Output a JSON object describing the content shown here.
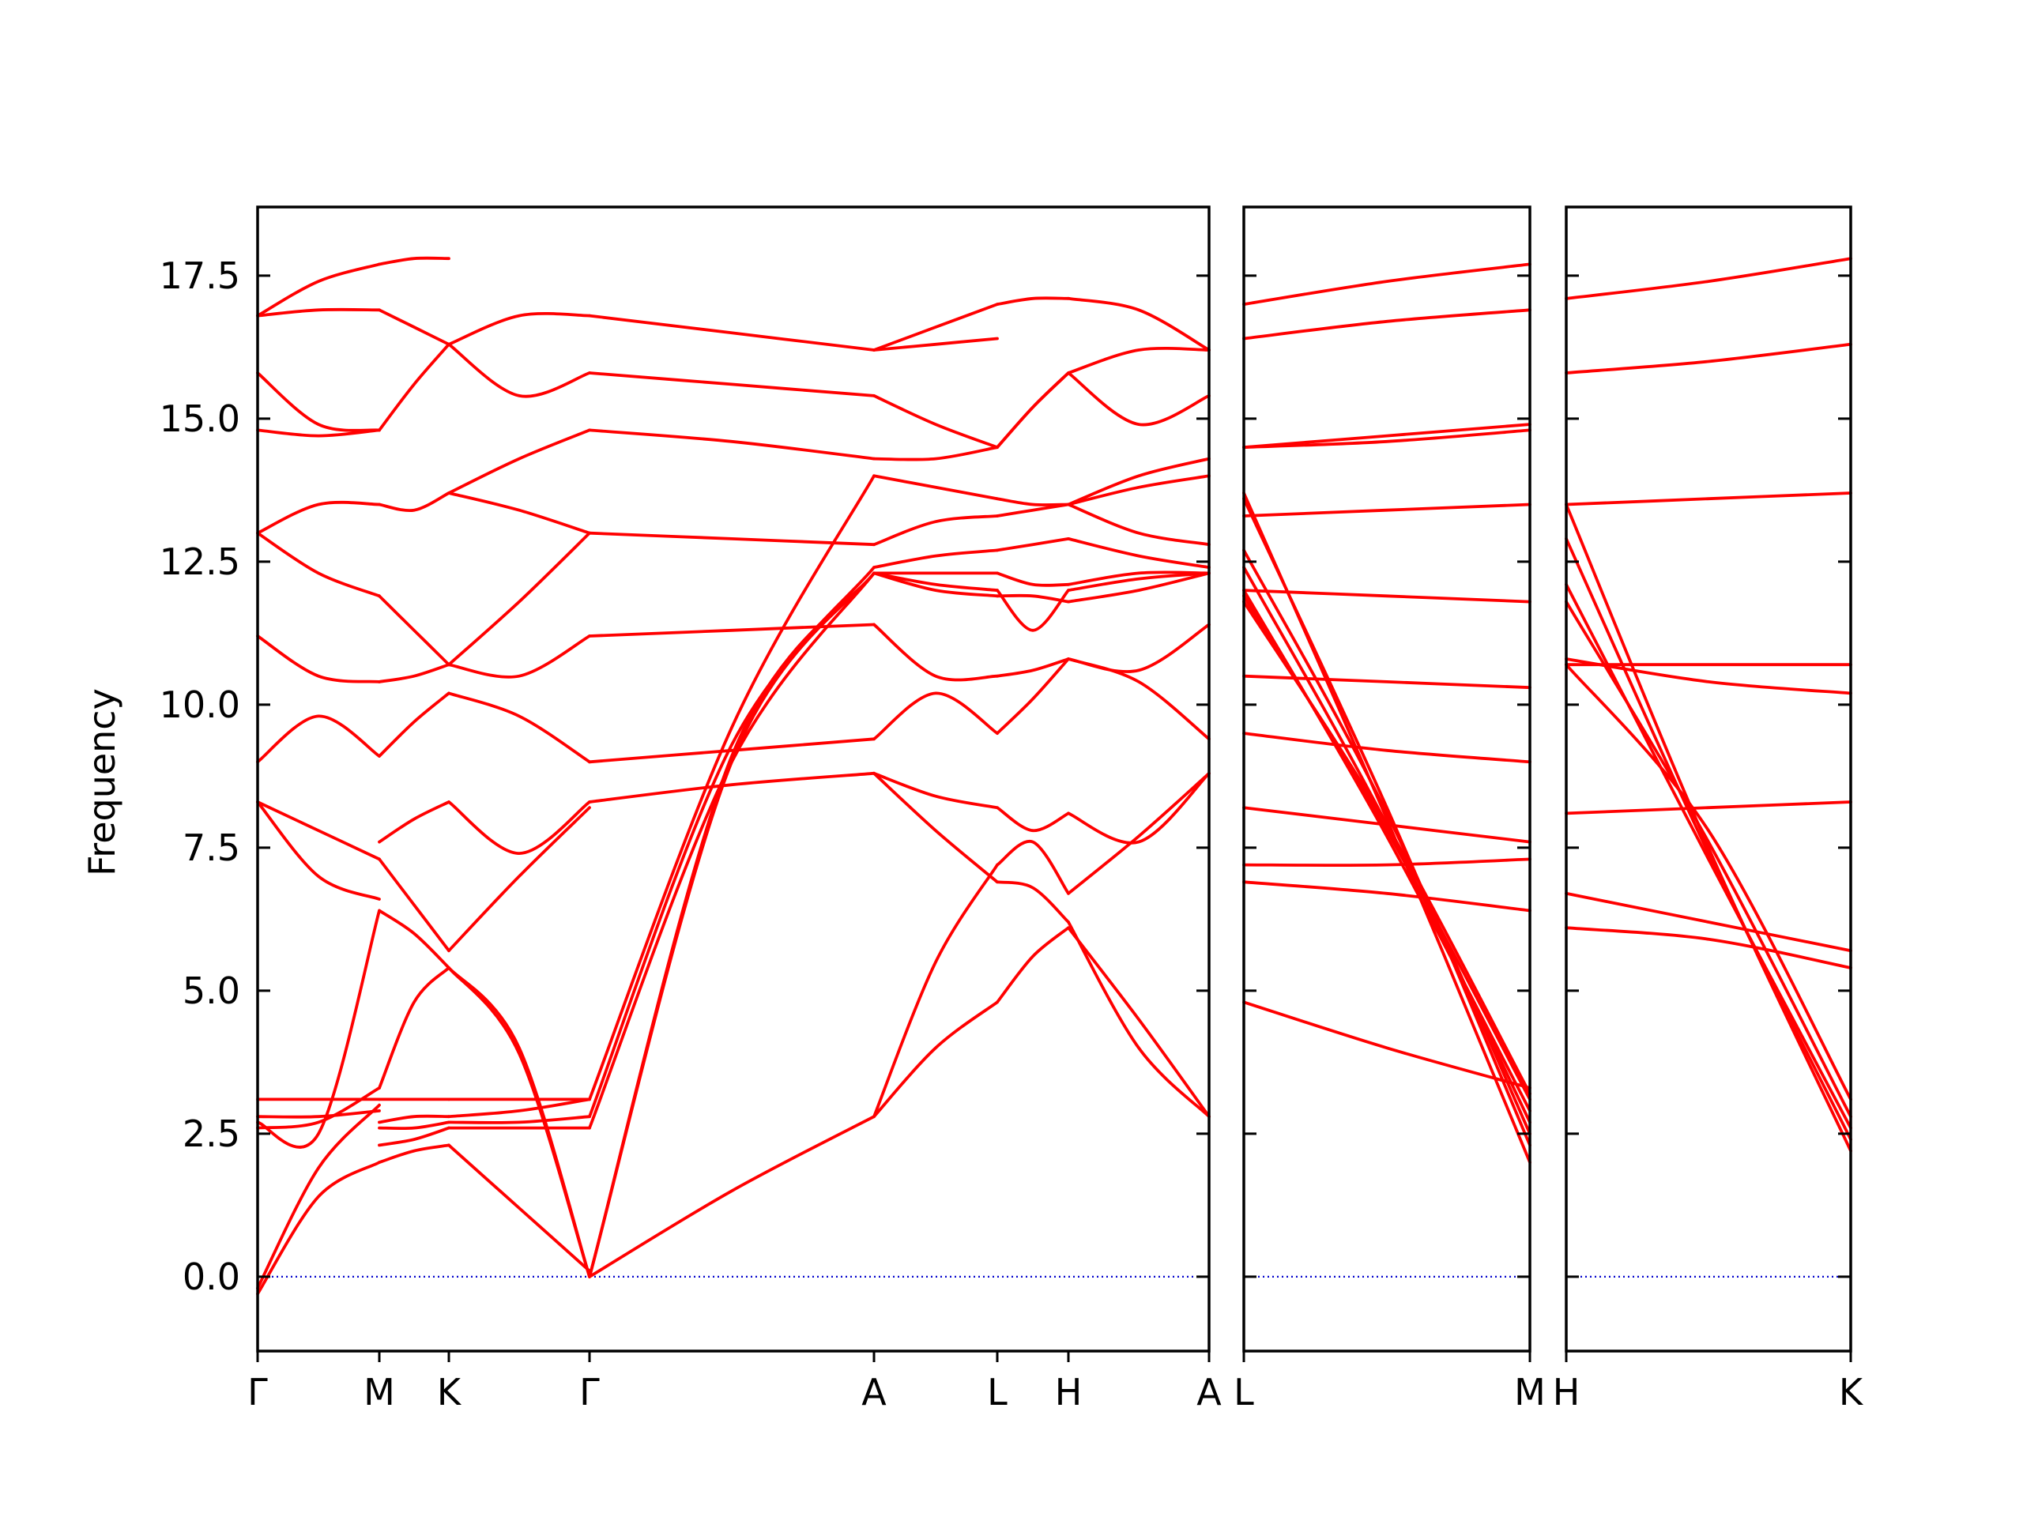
{
  "chart_data": {
    "type": "line",
    "title": "",
    "ylabel": "Frequency",
    "ylim": [
      -1.3,
      18.7
    ],
    "yticks": [
      "0.0",
      "2.5",
      "5.0",
      "7.5",
      "10.0",
      "12.5",
      "15.0",
      "17.5"
    ],
    "ytick_values": [
      0,
      2.5,
      5,
      7.5,
      10,
      12.5,
      15,
      17.5
    ],
    "colors": {
      "bands": "#ff0000",
      "zero_line": "#0000cc",
      "axes": "#000000"
    },
    "zero_line": {
      "y": 0,
      "style": "dotted"
    },
    "panels": [
      {
        "xticks": [
          "Γ",
          "M",
          "K",
          "Γ",
          "A",
          "L",
          "H",
          "A"
        ],
        "segments": [
          {
            "from": "Γ",
            "to": "M",
            "bands": [
              [
                -0.3,
                1.4,
                2.0
              ],
              [
                -0.2,
                1.9,
                3.0
              ],
              [
                2.6,
                2.7,
                3.3
              ],
              [
                2.7,
                2.5,
                6.4
              ],
              [
                2.8,
                2.8,
                2.9
              ],
              [
                3.1,
                3.1,
                3.1
              ],
              [
                8.3,
                7.0,
                6.6
              ],
              [
                8.3,
                7.8,
                7.3
              ],
              [
                9.0,
                9.8,
                9.1
              ],
              [
                11.2,
                10.5,
                10.4
              ],
              [
                13.0,
                12.3,
                11.9
              ],
              [
                13.0,
                13.5,
                13.5
              ],
              [
                14.8,
                14.7,
                14.8
              ],
              [
                15.8,
                14.9,
                14.8
              ],
              [
                16.8,
                16.9,
                16.9
              ],
              [
                16.8,
                17.4,
                17.7
              ]
            ]
          },
          {
            "from": "M",
            "to": "K",
            "bands": [
              [
                2.0,
                2.2,
                2.3
              ],
              [
                2.3,
                2.4,
                2.6
              ],
              [
                2.6,
                2.6,
                2.7
              ],
              [
                2.7,
                2.8,
                2.8
              ],
              [
                3.1,
                3.1,
                3.1
              ],
              [
                3.3,
                4.8,
                5.4
              ],
              [
                6.4,
                6.0,
                5.4
              ],
              [
                7.3,
                6.5,
                5.7
              ],
              [
                7.6,
                8.0,
                8.3
              ],
              [
                9.1,
                9.7,
                10.2
              ],
              [
                10.4,
                10.5,
                10.7
              ],
              [
                11.9,
                11.3,
                10.7
              ],
              [
                13.5,
                13.4,
                13.7
              ],
              [
                14.8,
                15.6,
                16.3
              ],
              [
                16.9,
                16.6,
                16.3
              ],
              [
                17.7,
                17.8,
                17.8
              ]
            ]
          },
          {
            "from": "K",
            "to": "Γ",
            "bands": [
              [
                2.3,
                1.2,
                0.1
              ],
              [
                2.6,
                2.6,
                2.6
              ],
              [
                2.7,
                2.7,
                2.8
              ],
              [
                2.8,
                2.9,
                3.1
              ],
              [
                3.1,
                3.1,
                3.1
              ],
              [
                5.4,
                4.0,
                0.0
              ],
              [
                5.4,
                3.9,
                0.0
              ],
              [
                5.7,
                7.0,
                8.2
              ],
              [
                8.3,
                7.4,
                8.3
              ],
              [
                10.2,
                9.8,
                9.0
              ],
              [
                10.7,
                10.5,
                11.2
              ],
              [
                10.7,
                11.8,
                13.0
              ],
              [
                13.7,
                13.4,
                13.0
              ],
              [
                13.7,
                14.3,
                14.8
              ],
              [
                16.3,
                15.4,
                15.8
              ],
              [
                16.3,
                16.8,
                16.8
              ]
            ]
          },
          {
            "from": "Γ",
            "to": "A",
            "bands": [
              [
                0.0,
                1.5,
                2.8
              ],
              [
                0.0,
                9.0,
                12.3
              ],
              [
                0.0,
                9.1,
                12.3
              ],
              [
                2.6,
                9.0,
                12.3
              ],
              [
                2.8,
                9.3,
                12.4
              ],
              [
                3.1,
                9.6,
                14.0
              ],
              [
                8.3,
                8.6,
                8.8
              ],
              [
                9.0,
                9.2,
                9.4
              ],
              [
                11.2,
                11.3,
                11.4
              ],
              [
                13.0,
                12.9,
                12.8
              ],
              [
                14.8,
                14.6,
                14.3
              ],
              [
                15.8,
                15.6,
                15.4
              ],
              [
                16.8,
                16.5,
                16.2
              ]
            ]
          },
          {
            "from": "A",
            "to": "L",
            "bands": [
              [
                2.8,
                4.0,
                4.8
              ],
              [
                2.8,
                5.5,
                7.2
              ],
              [
                8.8,
                7.8,
                6.9
              ],
              [
                8.8,
                8.4,
                8.2
              ],
              [
                9.4,
                10.2,
                9.5
              ],
              [
                11.4,
                10.5,
                10.5
              ],
              [
                12.3,
                12.0,
                11.9
              ],
              [
                12.3,
                12.1,
                12.0
              ],
              [
                12.3,
                12.3,
                12.3
              ],
              [
                12.4,
                12.6,
                12.7
              ],
              [
                12.8,
                13.2,
                13.3
              ],
              [
                14.0,
                13.8,
                13.6
              ],
              [
                14.3,
                14.3,
                14.5
              ],
              [
                15.4,
                14.9,
                14.5
              ],
              [
                16.2,
                16.6,
                17.0
              ],
              [
                16.2,
                16.3,
                16.4
              ]
            ]
          },
          {
            "from": "L",
            "to": "H",
            "bands": [
              [
                4.8,
                5.6,
                6.1
              ],
              [
                6.9,
                6.8,
                6.2
              ],
              [
                7.2,
                7.6,
                6.7
              ],
              [
                8.2,
                7.8,
                8.1
              ],
              [
                9.5,
                10.1,
                10.8
              ],
              [
                10.5,
                10.6,
                10.8
              ],
              [
                11.9,
                11.9,
                11.8
              ],
              [
                12.0,
                11.3,
                12.0
              ],
              [
                12.3,
                12.1,
                12.1
              ],
              [
                12.7,
                12.8,
                12.9
              ],
              [
                13.3,
                13.4,
                13.5
              ],
              [
                13.6,
                13.5,
                13.5
              ],
              [
                14.5,
                15.2,
                15.8
              ],
              [
                14.5,
                15.2,
                15.8
              ],
              [
                17.0,
                17.1,
                17.1
              ]
            ]
          },
          {
            "from": "H",
            "to": "A",
            "bands": [
              [
                6.1,
                4.5,
                2.8
              ],
              [
                6.2,
                4.0,
                2.8
              ],
              [
                6.7,
                7.7,
                8.8
              ],
              [
                8.1,
                7.6,
                8.8
              ],
              [
                10.8,
                10.4,
                9.4
              ],
              [
                10.8,
                10.6,
                11.4
              ],
              [
                11.8,
                12.0,
                12.3
              ],
              [
                12.0,
                12.2,
                12.3
              ],
              [
                12.1,
                12.3,
                12.3
              ],
              [
                12.9,
                12.6,
                12.4
              ],
              [
                13.5,
                13.0,
                12.8
              ],
              [
                13.5,
                13.8,
                14.0
              ],
              [
                13.5,
                14.0,
                14.3
              ],
              [
                15.8,
                14.9,
                15.4
              ],
              [
                15.8,
                16.2,
                16.2
              ],
              [
                17.1,
                16.9,
                16.2
              ]
            ]
          }
        ]
      },
      {
        "xticks": [
          "L",
          "M"
        ],
        "segments": [
          {
            "from": "L",
            "to": "M",
            "bands": [
              [
                4.8,
                4.0,
                3.3
              ],
              [
                6.9,
                6.7,
                6.4
              ],
              [
                7.2,
                7.2,
                7.3
              ],
              [
                8.2,
                7.9,
                7.6
              ],
              [
                9.5,
                9.2,
                9.0
              ],
              [
                10.5,
                10.4,
                10.3
              ],
              [
                12.0,
                11.9,
                11.8
              ],
              [
                13.3,
                13.4,
                13.5
              ],
              [
                14.5,
                14.6,
                14.8
              ],
              [
                14.5,
                14.7,
                14.9
              ],
              [
                16.4,
                16.7,
                16.9
              ],
              [
                17.0,
                17.4,
                17.7
              ],
              [
                13.7,
                8.0,
                2.0
              ],
              [
                13.6,
                8.2,
                2.3
              ],
              [
                12.7,
                8.1,
                2.5
              ],
              [
                12.4,
                7.9,
                2.7
              ],
              [
                12.0,
                7.7,
                2.9
              ],
              [
                11.9,
                7.8,
                3.1
              ],
              [
                11.8,
                7.9,
                3.2
              ]
            ]
          }
        ]
      },
      {
        "xticks": [
          "H",
          "K"
        ],
        "segments": [
          {
            "from": "H",
            "to": "K",
            "bands": [
              [
                6.1,
                5.9,
                5.4
              ],
              [
                6.7,
                6.2,
                5.7
              ],
              [
                8.1,
                8.2,
                8.3
              ],
              [
                10.7,
                10.7,
                10.7
              ],
              [
                13.5,
                13.6,
                13.7
              ],
              [
                15.8,
                16.0,
                16.3
              ],
              [
                17.1,
                17.4,
                17.8
              ],
              [
                10.8,
                10.4,
                10.2
              ],
              [
                13.5,
                7.5,
                2.2
              ],
              [
                12.9,
                7.4,
                2.4
              ],
              [
                12.1,
                7.3,
                2.6
              ],
              [
                11.8,
                7.6,
                2.8
              ],
              [
                10.7,
                7.8,
                3.1
              ]
            ]
          }
        ]
      }
    ]
  }
}
